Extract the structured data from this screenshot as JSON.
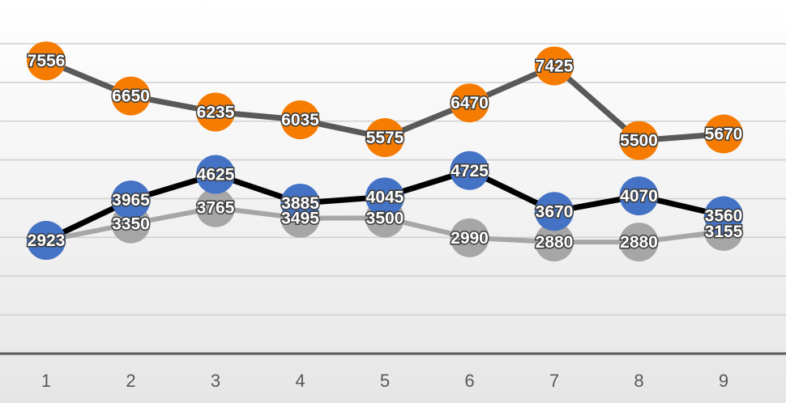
{
  "chart_data": {
    "type": "line",
    "title": "",
    "xlabel": "",
    "ylabel": "",
    "x": [
      "1",
      "2",
      "3",
      "4",
      "5",
      "6",
      "7",
      "8",
      "9"
    ],
    "ylim": [
      0,
      8500
    ],
    "grid": true,
    "legend": "none",
    "series": [
      {
        "values": [
          7556,
          6650,
          6235,
          6035,
          5575,
          6470,
          7425,
          5500,
          5670
        ],
        "line_color": "#595959",
        "marker_color": "#f57c00"
      },
      {
        "values": [
          2923,
          3965,
          4625,
          3885,
          4045,
          4725,
          3670,
          4070,
          3560
        ],
        "line_color": "#000000",
        "marker_color": "#4472c4"
      },
      {
        "values": [
          2923,
          3350,
          3765,
          3495,
          3500,
          2990,
          2880,
          2880,
          3155
        ],
        "line_color": "#a6a6a6",
        "marker_color": "#a6a6a6"
      }
    ]
  }
}
